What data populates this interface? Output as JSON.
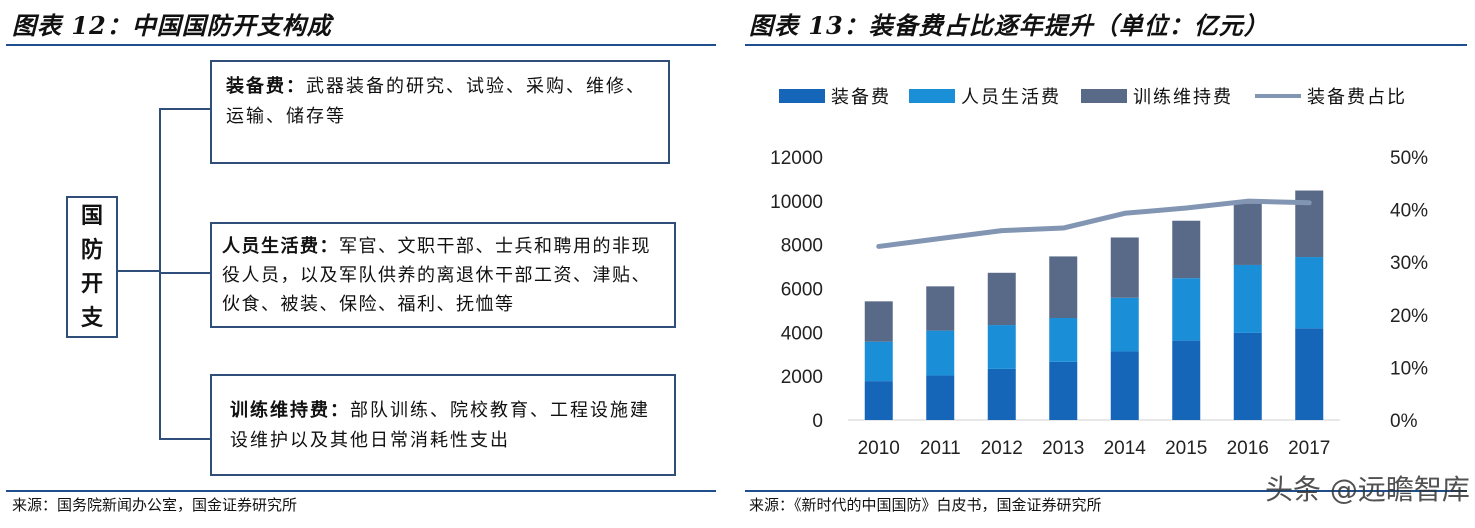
{
  "left_panel": {
    "title": "图表 12：中国国防开支构成",
    "root": [
      "国",
      "防",
      "开",
      "支"
    ],
    "items": [
      {
        "head": "装备费：",
        "text": "武器装备的研究、试验、采购、维修、运输、储存等"
      },
      {
        "head": "人员生活费：",
        "text": "军官、文职干部、士兵和聘用的非现役人员，以及军队供养的离退休干部工资、津贴、伙食、被装、保险、福利、抚恤等"
      },
      {
        "head": "训练维持费：",
        "text": "部队训练、院校教育、工程设施建设维护以及其他日常消耗性支出"
      }
    ],
    "source": "来源：国务院新闻办公室，国金证券研究所"
  },
  "right_panel": {
    "title": "图表 13：装备费占比逐年提升（单位：亿元）",
    "source": "来源：《新时代的中国国防》白皮书，国金证券研究所",
    "watermark": "头条 @远瞻智库"
  },
  "colors": {
    "equipment": "#1565b8",
    "personnel": "#1a8fd8",
    "training": "#596a88",
    "ratio_line": "#8296b4",
    "frame": "#2f4e7a",
    "rule": "#1f4e8c"
  },
  "chart_data": {
    "type": "bar",
    "stacked": true,
    "categories": [
      "2010",
      "2011",
      "2012",
      "2013",
      "2014",
      "2015",
      "2016",
      "2017"
    ],
    "series": [
      {
        "name": "装备费",
        "values": [
          1774,
          2028,
          2332,
          2654,
          3128,
          3622,
          3974,
          4185
        ]
      },
      {
        "name": "人员生活费",
        "values": [
          1800,
          2050,
          2000,
          2000,
          2450,
          2850,
          3100,
          3250
        ]
      },
      {
        "name": "训练维持费",
        "values": [
          1840,
          2020,
          2385,
          2810,
          2750,
          2620,
          2800,
          3035
        ]
      }
    ],
    "line_series": {
      "name": "装备费占比",
      "axis": "right",
      "values": [
        33.0,
        34.5,
        36.0,
        36.5,
        39.3,
        40.3,
        41.6,
        41.3
      ]
    },
    "ylim": [
      0,
      12000
    ],
    "yticks": [
      "0",
      "2000",
      "4000",
      "6000",
      "8000",
      "10000",
      "12000"
    ],
    "y2lim": [
      0,
      50
    ],
    "y2ticks": [
      "0%",
      "10%",
      "20%",
      "30%",
      "40%",
      "50%"
    ],
    "grid": false,
    "legend_position": "top"
  }
}
